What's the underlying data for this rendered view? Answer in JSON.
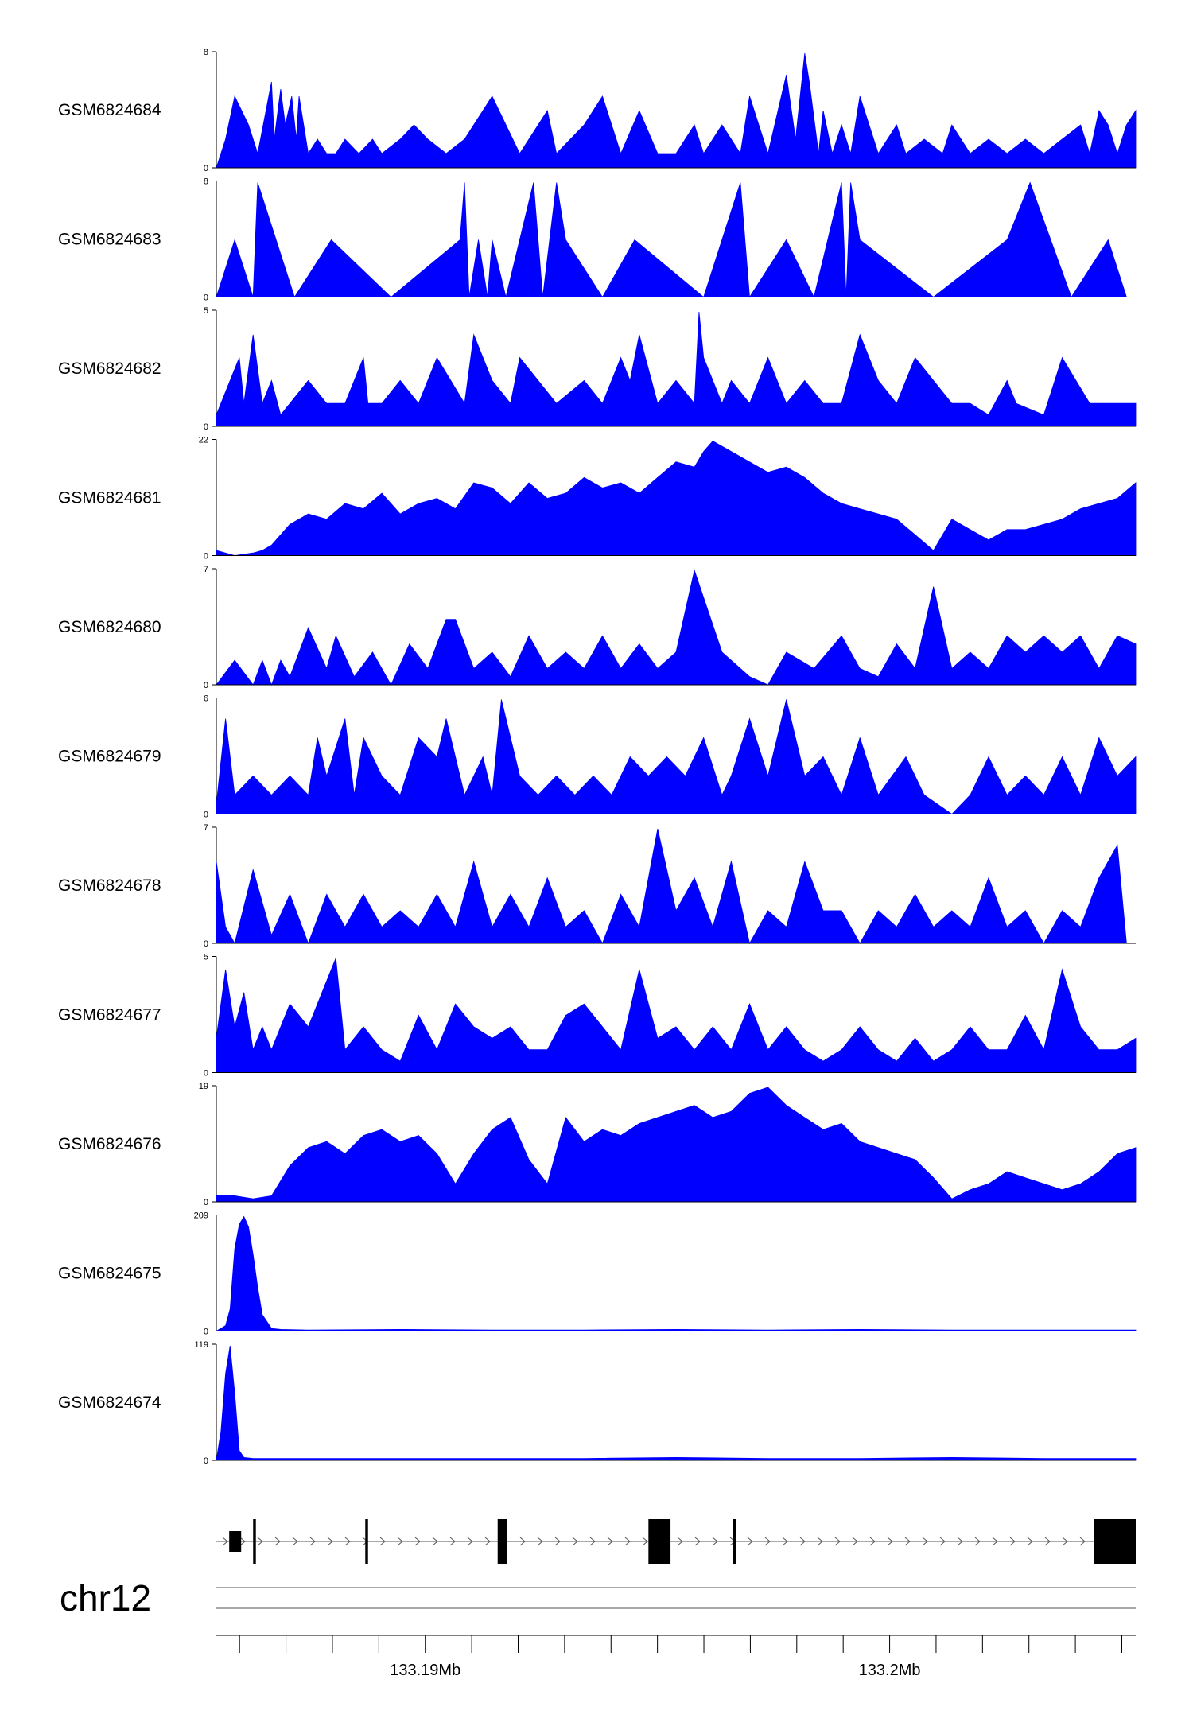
{
  "chart_data": {
    "type": "area",
    "title": "",
    "chromosome": "chr12",
    "genomic_axis": {
      "range_mb": [
        133.1855,
        133.2053
      ],
      "ticks_mb": [
        133.19,
        133.2
      ],
      "tick_labels": [
        "133.19Mb",
        "133.2Mb"
      ]
    },
    "color": "#0000FF",
    "grid": false,
    "series": [
      {
        "name": "GSM6824684",
        "ymax": 8,
        "ymin": 0,
        "x": [
          0,
          0.01,
          0.02,
          0.035,
          0.045,
          0.06,
          0.063,
          0.07,
          0.075,
          0.082,
          0.087,
          0.09,
          0.1,
          0.11,
          0.12,
          0.13,
          0.14,
          0.155,
          0.17,
          0.18,
          0.2,
          0.215,
          0.23,
          0.25,
          0.27,
          0.3,
          0.33,
          0.36,
          0.37,
          0.4,
          0.42,
          0.44,
          0.46,
          0.48,
          0.5,
          0.52,
          0.53,
          0.55,
          0.57,
          0.58,
          0.6,
          0.62,
          0.63,
          0.64,
          0.645,
          0.655,
          0.66,
          0.67,
          0.68,
          0.69,
          0.7,
          0.72,
          0.74,
          0.75,
          0.77,
          0.79,
          0.8,
          0.82,
          0.84,
          0.86,
          0.88,
          0.9,
          0.92,
          0.94,
          0.95,
          0.96,
          0.97,
          0.98,
          0.99,
          1
        ],
        "y": [
          0,
          2,
          5,
          3,
          1,
          6,
          2,
          5.5,
          3,
          5,
          2,
          5,
          1,
          2,
          1,
          1,
          2,
          1,
          2,
          1,
          2,
          3,
          2,
          1,
          2,
          5,
          1,
          4,
          1,
          3,
          5,
          1,
          4,
          1,
          1,
          3,
          1,
          3,
          1,
          5,
          1,
          6.5,
          2,
          8,
          6,
          1,
          4,
          1,
          3,
          1,
          5,
          1,
          3,
          1,
          2,
          1,
          3,
          1,
          2,
          1,
          2,
          1,
          2,
          3,
          1,
          4,
          3,
          1,
          3,
          4
        ]
      },
      {
        "name": "GSM6824683",
        "ymax": 8,
        "ymin": 0,
        "x": [
          0,
          0.02,
          0.04,
          0.045,
          0.085,
          0.125,
          0.19,
          0.265,
          0.27,
          0.275,
          0.285,
          0.295,
          0.3,
          0.315,
          0.345,
          0.355,
          0.37,
          0.38,
          0.42,
          0.455,
          0.53,
          0.57,
          0.58,
          0.62,
          0.65,
          0.68,
          0.685,
          0.69,
          0.7,
          0.78,
          0.86,
          0.885,
          0.93,
          0.97,
          0.99
        ],
        "y": [
          0,
          4,
          0,
          8,
          0,
          4,
          0,
          4,
          8,
          0,
          4,
          0,
          4,
          0,
          8,
          0,
          8,
          4,
          0,
          4,
          0,
          8,
          0,
          4,
          0,
          8,
          0,
          8,
          4,
          0,
          4,
          8,
          0,
          4,
          0
        ]
      },
      {
        "name": "GSM6824682",
        "ymax": 5,
        "ymin": 0,
        "x": [
          0,
          0.015,
          0.025,
          0.03,
          0.04,
          0.05,
          0.06,
          0.07,
          0.08,
          0.1,
          0.12,
          0.14,
          0.16,
          0.165,
          0.18,
          0.2,
          0.22,
          0.24,
          0.255,
          0.27,
          0.28,
          0.3,
          0.32,
          0.33,
          0.35,
          0.37,
          0.4,
          0.42,
          0.44,
          0.45,
          0.46,
          0.48,
          0.5,
          0.52,
          0.525,
          0.53,
          0.55,
          0.56,
          0.58,
          0.6,
          0.62,
          0.64,
          0.66,
          0.68,
          0.7,
          0.72,
          0.74,
          0.76,
          0.8,
          0.82,
          0.84,
          0.86,
          0.87,
          0.9,
          0.92,
          0.95,
          0.98,
          1
        ],
        "y": [
          0.5,
          2,
          3,
          1,
          4,
          1,
          2,
          0.5,
          1,
          2,
          1,
          1,
          3,
          1,
          1,
          2,
          1,
          3,
          2,
          1,
          4,
          2,
          1,
          3,
          2,
          1,
          2,
          1,
          3,
          2,
          4,
          1,
          2,
          1,
          5,
          3,
          1,
          2,
          1,
          3,
          1,
          2,
          1,
          1,
          4,
          2,
          1,
          3,
          1,
          1,
          0.5,
          2,
          1,
          0.5,
          3,
          1,
          1,
          1
        ]
      },
      {
        "name": "GSM6824681",
        "ymax": 22,
        "ymin": 0,
        "x": [
          0,
          0.02,
          0.04,
          0.05,
          0.06,
          0.08,
          0.1,
          0.12,
          0.14,
          0.16,
          0.18,
          0.2,
          0.22,
          0.24,
          0.26,
          0.28,
          0.3,
          0.32,
          0.34,
          0.36,
          0.38,
          0.4,
          0.42,
          0.44,
          0.46,
          0.48,
          0.5,
          0.52,
          0.53,
          0.54,
          0.56,
          0.58,
          0.6,
          0.62,
          0.64,
          0.66,
          0.68,
          0.7,
          0.72,
          0.74,
          0.76,
          0.78,
          0.8,
          0.82,
          0.84,
          0.86,
          0.88,
          0.9,
          0.92,
          0.94,
          0.96,
          0.98,
          1
        ],
        "y": [
          1,
          0,
          0.5,
          1,
          2,
          6,
          8,
          7,
          10,
          9,
          12,
          8,
          10,
          11,
          9,
          14,
          13,
          10,
          14,
          11,
          12,
          15,
          13,
          14,
          12,
          15,
          18,
          17,
          20,
          22,
          20,
          18,
          16,
          17,
          15,
          12,
          10,
          9,
          8,
          7,
          4,
          1,
          7,
          5,
          3,
          5,
          5,
          6,
          7,
          9,
          10,
          11,
          14
        ]
      },
      {
        "name": "GSM6824680",
        "ymax": 7,
        "ymin": 0,
        "x": [
          0,
          0.02,
          0.04,
          0.05,
          0.06,
          0.07,
          0.08,
          0.1,
          0.12,
          0.13,
          0.15,
          0.17,
          0.19,
          0.21,
          0.23,
          0.25,
          0.26,
          0.28,
          0.3,
          0.32,
          0.34,
          0.36,
          0.38,
          0.4,
          0.42,
          0.44,
          0.46,
          0.48,
          0.5,
          0.52,
          0.55,
          0.58,
          0.6,
          0.62,
          0.65,
          0.68,
          0.7,
          0.72,
          0.74,
          0.76,
          0.78,
          0.8,
          0.82,
          0.84,
          0.86,
          0.88,
          0.9,
          0.92,
          0.94,
          0.96,
          0.98,
          1
        ],
        "y": [
          0,
          1.5,
          0,
          1.5,
          0,
          1.5,
          0.5,
          3.5,
          1,
          3,
          0.5,
          2,
          0,
          2.5,
          1,
          4,
          4,
          1,
          2,
          0.5,
          3,
          1,
          2,
          1,
          3,
          1,
          2.5,
          1,
          2,
          7,
          2,
          0.5,
          0,
          2,
          1,
          3,
          1,
          0.5,
          2.5,
          1,
          6,
          1,
          2,
          1,
          3,
          2,
          3,
          2,
          3,
          1,
          3,
          2.5
        ]
      },
      {
        "name": "GSM6824679",
        "ymax": 6,
        "ymin": 0,
        "x": [
          0,
          0.01,
          0.02,
          0.04,
          0.06,
          0.08,
          0.1,
          0.11,
          0.12,
          0.14,
          0.15,
          0.16,
          0.18,
          0.2,
          0.22,
          0.24,
          0.25,
          0.27,
          0.29,
          0.3,
          0.31,
          0.33,
          0.35,
          0.37,
          0.39,
          0.41,
          0.43,
          0.45,
          0.47,
          0.49,
          0.51,
          0.53,
          0.55,
          0.56,
          0.58,
          0.6,
          0.62,
          0.64,
          0.66,
          0.68,
          0.7,
          0.72,
          0.75,
          0.77,
          0.8,
          0.82,
          0.84,
          0.86,
          0.88,
          0.9,
          0.92,
          0.94,
          0.96,
          0.98,
          1
        ],
        "y": [
          0.5,
          5,
          1,
          2,
          1,
          2,
          1,
          4,
          2,
          5,
          1,
          4,
          2,
          1,
          4,
          3,
          5,
          1,
          3,
          1,
          6,
          2,
          1,
          2,
          1,
          2,
          1,
          3,
          2,
          3,
          2,
          4,
          1,
          2,
          5,
          2,
          6,
          2,
          3,
          1,
          4,
          1,
          3,
          1,
          0,
          1,
          3,
          1,
          2,
          1,
          3,
          1,
          4,
          2,
          3
        ]
      },
      {
        "name": "GSM6824678",
        "ymax": 7,
        "ymin": 0,
        "x": [
          0,
          0.01,
          0.02,
          0.04,
          0.06,
          0.08,
          0.1,
          0.12,
          0.14,
          0.16,
          0.18,
          0.2,
          0.22,
          0.24,
          0.26,
          0.28,
          0.3,
          0.32,
          0.34,
          0.36,
          0.38,
          0.4,
          0.42,
          0.44,
          0.46,
          0.48,
          0.5,
          0.52,
          0.54,
          0.56,
          0.58,
          0.6,
          0.62,
          0.64,
          0.66,
          0.68,
          0.7,
          0.72,
          0.74,
          0.76,
          0.78,
          0.8,
          0.82,
          0.84,
          0.86,
          0.88,
          0.9,
          0.92,
          0.94,
          0.96,
          0.98,
          0.99
        ],
        "y": [
          5,
          1,
          0,
          4.5,
          0.5,
          3,
          0,
          3,
          1,
          3,
          1,
          2,
          1,
          3,
          1,
          5,
          1,
          3,
          1,
          4,
          1,
          2,
          0,
          3,
          1,
          7,
          2,
          4,
          1,
          5,
          0,
          2,
          1,
          5,
          2,
          2,
          0,
          2,
          1,
          3,
          1,
          2,
          1,
          4,
          1,
          2,
          0,
          2,
          1,
          4,
          6,
          0
        ]
      },
      {
        "name": "GSM6824677",
        "ymax": 5,
        "ymin": 0,
        "x": [
          0,
          0.01,
          0.02,
          0.03,
          0.04,
          0.05,
          0.06,
          0.08,
          0.1,
          0.12,
          0.13,
          0.14,
          0.16,
          0.18,
          0.2,
          0.22,
          0.24,
          0.26,
          0.28,
          0.3,
          0.32,
          0.34,
          0.36,
          0.38,
          0.4,
          0.42,
          0.44,
          0.46,
          0.48,
          0.5,
          0.52,
          0.54,
          0.56,
          0.58,
          0.6,
          0.62,
          0.64,
          0.66,
          0.68,
          0.7,
          0.72,
          0.74,
          0.76,
          0.78,
          0.8,
          0.82,
          0.84,
          0.86,
          0.88,
          0.9,
          0.92,
          0.94,
          0.96,
          0.98,
          1
        ],
        "y": [
          1.5,
          4.5,
          2,
          3.5,
          1,
          2,
          1,
          3,
          2,
          4,
          5,
          1,
          2,
          1,
          0.5,
          2.5,
          1,
          3,
          2,
          1.5,
          2,
          1,
          1,
          2.5,
          3,
          2,
          1,
          4.5,
          1.5,
          2,
          1,
          2,
          1,
          3,
          1,
          2,
          1,
          0.5,
          1,
          2,
          1,
          0.5,
          1.5,
          0.5,
          1,
          2,
          1,
          1,
          2.5,
          1,
          4.5,
          2,
          1,
          1,
          1.5
        ]
      },
      {
        "name": "GSM6824676",
        "ymax": 19,
        "ymin": 0,
        "x": [
          0,
          0.02,
          0.04,
          0.06,
          0.08,
          0.1,
          0.12,
          0.14,
          0.16,
          0.18,
          0.2,
          0.22,
          0.24,
          0.26,
          0.28,
          0.3,
          0.32,
          0.34,
          0.36,
          0.38,
          0.4,
          0.42,
          0.44,
          0.46,
          0.48,
          0.5,
          0.52,
          0.54,
          0.56,
          0.58,
          0.6,
          0.62,
          0.64,
          0.66,
          0.68,
          0.7,
          0.72,
          0.74,
          0.76,
          0.78,
          0.8,
          0.82,
          0.84,
          0.86,
          0.88,
          0.9,
          0.92,
          0.94,
          0.96,
          0.98,
          1
        ],
        "y": [
          1,
          1,
          0.5,
          1,
          6,
          9,
          10,
          8,
          11,
          12,
          10,
          11,
          8,
          3,
          8,
          12,
          14,
          7,
          3,
          14,
          10,
          12,
          11,
          13,
          14,
          15,
          16,
          14,
          15,
          18,
          19,
          16,
          14,
          12,
          13,
          10,
          9,
          8,
          7,
          4,
          0.5,
          2,
          3,
          5,
          4,
          3,
          2,
          3,
          5,
          8,
          9
        ]
      },
      {
        "name": "GSM6824675",
        "ymax": 209,
        "ymin": 0,
        "x": [
          0,
          0.01,
          0.015,
          0.02,
          0.025,
          0.03,
          0.035,
          0.04,
          0.045,
          0.05,
          0.06,
          0.07,
          0.1,
          0.2,
          0.3,
          0.4,
          0.5,
          0.6,
          0.7,
          0.8,
          0.9,
          1
        ],
        "y": [
          0,
          10,
          40,
          150,
          195,
          209,
          190,
          140,
          80,
          30,
          5,
          3,
          2,
          3,
          2,
          2,
          3,
          2,
          3,
          2,
          2,
          2
        ]
      },
      {
        "name": "GSM6824674",
        "ymax": 119,
        "ymin": 0,
        "x": [
          0,
          0.005,
          0.01,
          0.015,
          0.02,
          0.025,
          0.03,
          0.04,
          0.1,
          0.2,
          0.3,
          0.4,
          0.5,
          0.6,
          0.7,
          0.8,
          0.9,
          1
        ],
        "y": [
          0,
          30,
          90,
          119,
          70,
          10,
          3,
          2,
          2,
          2,
          2,
          2,
          3,
          2,
          2,
          3,
          2,
          2
        ]
      }
    ]
  },
  "gene_model": {
    "strand": "+",
    "exons": [
      [
        0.014,
        0.027
      ],
      [
        0.04,
        0.043
      ],
      [
        0.162,
        0.165
      ],
      [
        0.306,
        0.316
      ],
      [
        0.47,
        0.494
      ],
      [
        0.562,
        0.565
      ],
      [
        0.955,
        1.0
      ]
    ],
    "exon_heights": [
      "small",
      "tall",
      "tall",
      "tall",
      "tall",
      "tall",
      "large"
    ]
  }
}
